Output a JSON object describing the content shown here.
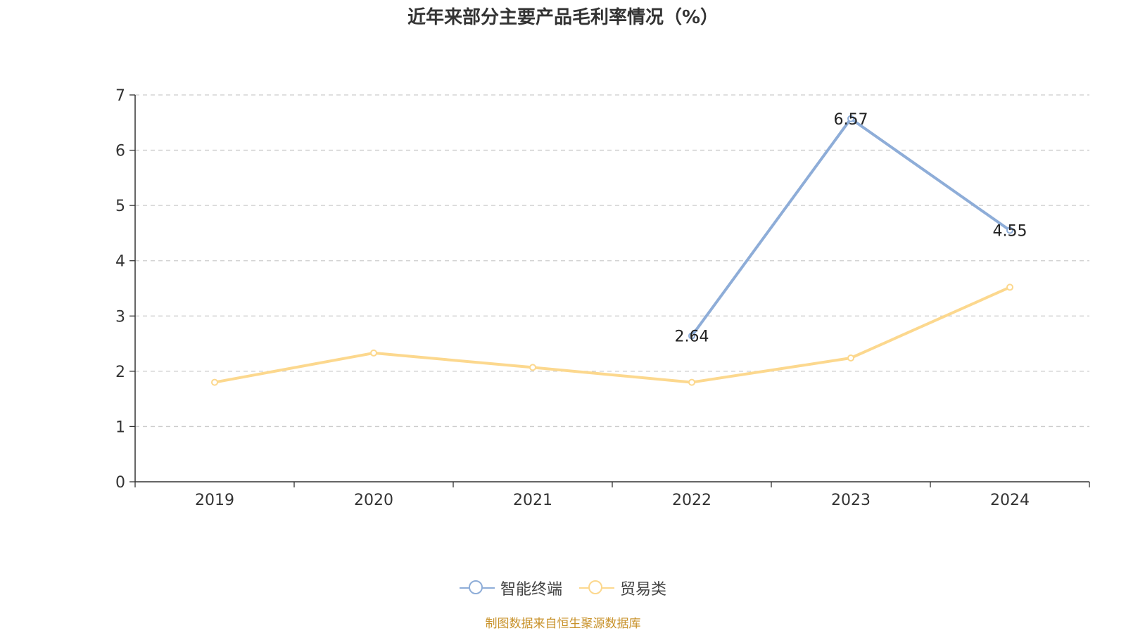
{
  "chart_data": {
    "type": "line",
    "title": "近年来部分主要产品毛利率情况（%）",
    "categories": [
      "2019",
      "2020",
      "2021",
      "2022",
      "2023",
      "2024"
    ],
    "ylim": [
      0,
      7
    ],
    "yticks": [
      0,
      1,
      2,
      3,
      4,
      5,
      6,
      7
    ],
    "grid": true,
    "legend_position": "bottom-center",
    "series": [
      {
        "name": "智能终端",
        "color": "#8eadd8",
        "values": [
          null,
          null,
          null,
          2.64,
          6.57,
          4.55
        ],
        "labels": [
          "",
          "",
          "",
          "2.64",
          "6.57",
          "4.55"
        ]
      },
      {
        "name": "贸易类",
        "color": "#fcd88e",
        "values": [
          1.8,
          2.33,
          2.07,
          1.8,
          2.24,
          3.52
        ],
        "labels": [
          "",
          "",
          "",
          "",
          "",
          ""
        ]
      }
    ]
  },
  "source_text": "制图数据来自恒生聚源数据库"
}
